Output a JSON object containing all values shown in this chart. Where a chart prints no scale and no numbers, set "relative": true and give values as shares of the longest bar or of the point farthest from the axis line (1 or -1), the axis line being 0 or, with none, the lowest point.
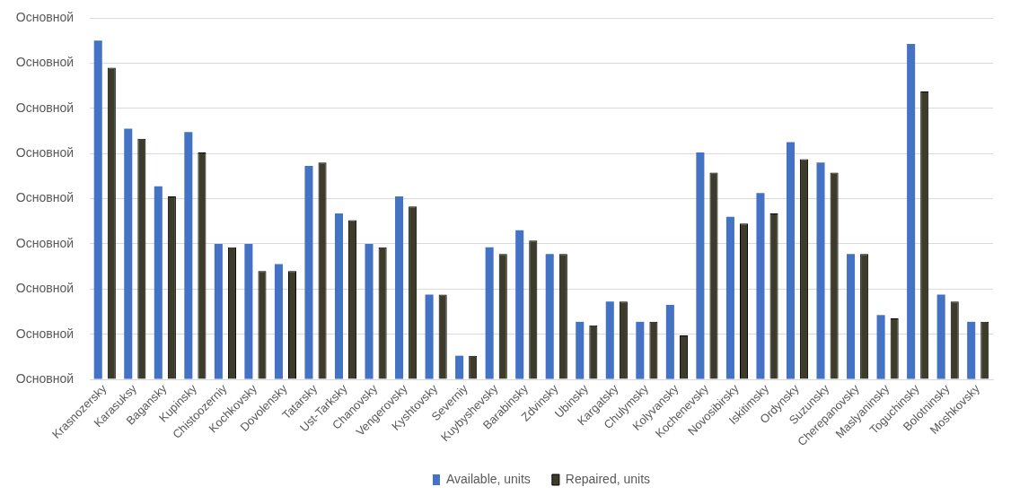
{
  "chart_data": {
    "type": "bar",
    "categories": [
      "Krasnozersky",
      "Karasuksy",
      "Bagansky",
      "Kupinsky",
      "Chistoozerniy",
      "Kochkovsky",
      "Dovolensky",
      "Tatarsky",
      "Ust-Tarksky",
      "Chanovsky",
      "Vengerovsky",
      "Kyshtovsky",
      "Severniy",
      "Kuybyshevsky",
      "Barabinsky",
      "Zdvinsky",
      "Ubinsky",
      "Kargatsky",
      "Chulymsky",
      "Kolyvansky",
      "Kochenevsky",
      "Novosibirsky",
      "Iskitimsky",
      "Ordynsky",
      "Suzunsky",
      "Cherepanovsky",
      "Maslyaninsky",
      "Toguchinsky",
      "Bolotninsky",
      "Moshkovsky"
    ],
    "series": [
      {
        "name": "Available, units",
        "color": "#4472c4",
        "values": [
          1,
          0.74,
          0.57,
          0.73,
          0.4,
          0.4,
          0.34,
          0.63,
          0.49,
          0.4,
          0.54,
          0.25,
          0.07,
          0.39,
          0.44,
          0.37,
          0.17,
          0.23,
          0.17,
          0.22,
          0.67,
          0.48,
          0.55,
          0.7,
          0.64,
          0.37,
          0.19,
          0.99,
          0.25,
          0.17
        ]
      },
      {
        "name": "Repaired, units",
        "color": "#3d3b2a",
        "values": [
          0.92,
          0.71,
          0.54,
          0.67,
          0.39,
          0.32,
          0.32,
          0.64,
          0.47,
          0.39,
          0.51,
          0.25,
          0.07,
          0.37,
          0.41,
          0.37,
          0.16,
          0.23,
          0.17,
          0.13,
          0.61,
          0.46,
          0.49,
          0.65,
          0.61,
          0.37,
          0.18,
          0.85,
          0.23,
          0.17
        ]
      }
    ],
    "relative": true,
    "annotations": [
      "Основной",
      "Основной",
      "Основной",
      "Основной",
      "Основной",
      "Основной",
      "Основной",
      "Основной",
      "Основной"
    ],
    "grid": "y",
    "legend": "bottom"
  }
}
